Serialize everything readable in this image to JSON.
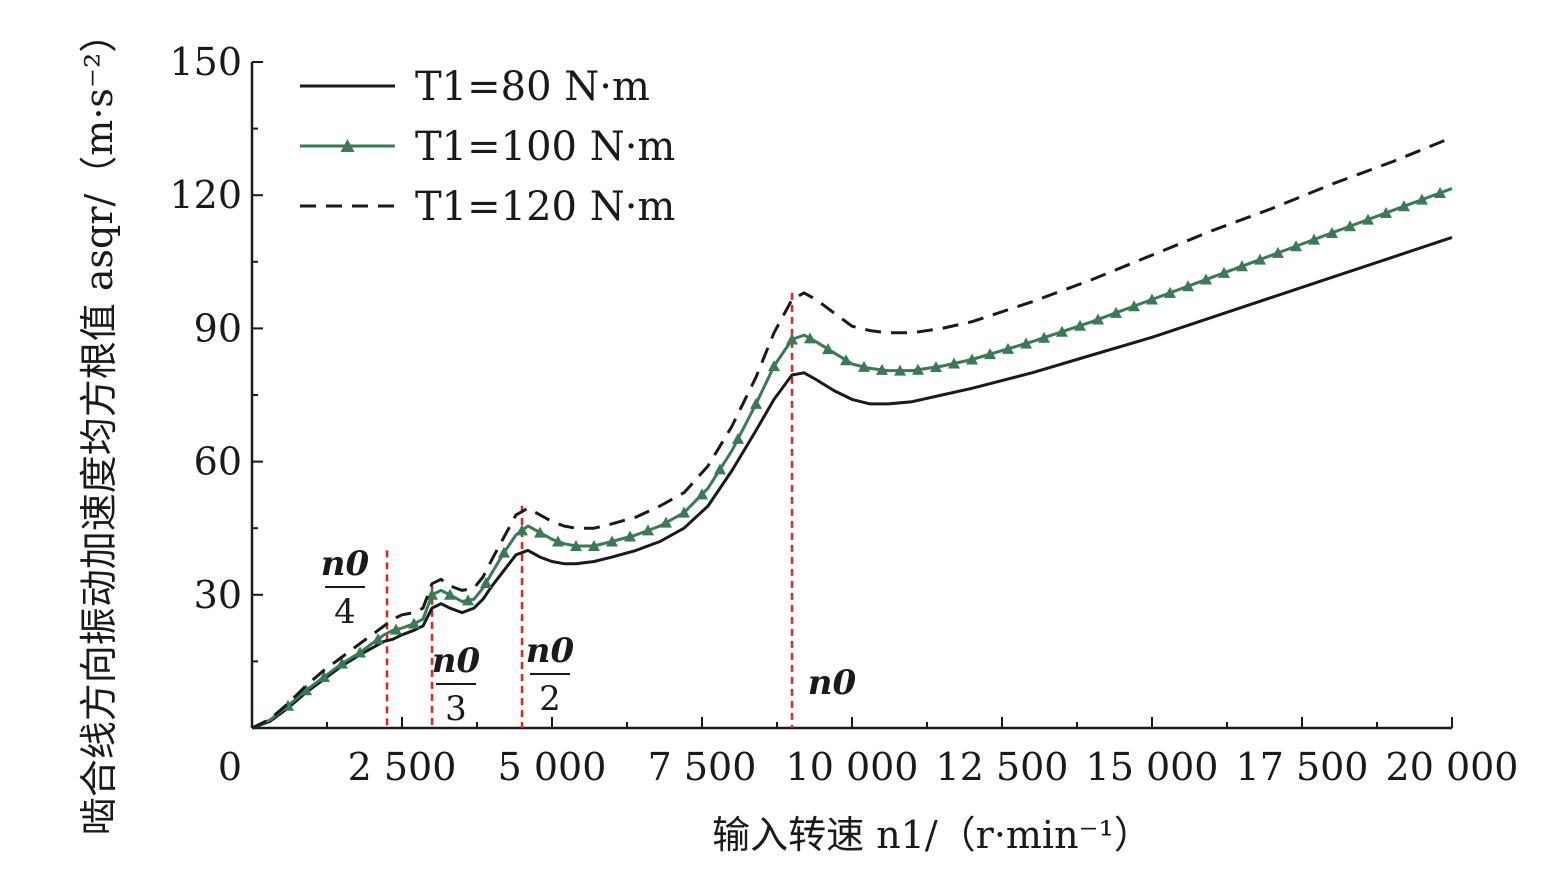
{
  "chart_data": {
    "type": "line",
    "title": "",
    "xlabel": "输入转速 n1/（r·min⁻¹）",
    "ylabel": "啮合线方向振动加速度均方根值 asqr/（m·s⁻²）",
    "xlim": [
      0,
      20000
    ],
    "ylim": [
      0,
      150
    ],
    "x_ticks": [
      0,
      2500,
      5000,
      7500,
      10000,
      12500,
      15000,
      17500,
      20000
    ],
    "x_tick_labels": [
      "0",
      "2 500",
      "5 000",
      "7 500",
      "10 000",
      "12 500",
      "15 000",
      "17 500",
      "20 000"
    ],
    "y_ticks": [
      30,
      60,
      90,
      120,
      150
    ],
    "y_tick_labels": [
      "30",
      "60",
      "90",
      "120",
      "150"
    ],
    "grid": false,
    "legend_position": "top-left",
    "x": [
      0,
      300,
      600,
      900,
      1200,
      1500,
      1800,
      2000,
      2200,
      2350,
      2500,
      2700,
      2850,
      3000,
      3150,
      3300,
      3500,
      3700,
      3850,
      4000,
      4200,
      4400,
      4600,
      4800,
      5000,
      5200,
      5400,
      5700,
      6000,
      6400,
      6800,
      7200,
      7600,
      8000,
      8400,
      8700,
      9000,
      9200,
      9400,
      9700,
      10000,
      10300,
      10600,
      11000,
      11500,
      12000,
      13000,
      14000,
      15000,
      16000,
      17000,
      18000,
      19000,
      20000
    ],
    "series": [
      {
        "name": "T1=80 N·m",
        "style": "solid",
        "color": "#1a1a1a",
        "values": [
          0,
          1.5,
          4.5,
          8,
          11,
          14,
          16.5,
          18,
          19.5,
          20,
          21,
          22,
          23,
          27,
          28,
          27,
          26,
          27,
          29,
          32,
          35.5,
          39,
          40,
          38.5,
          37.5,
          37,
          37,
          37.5,
          38.5,
          40,
          42,
          45,
          50,
          58,
          67,
          74,
          79.5,
          80,
          78.5,
          76,
          74,
          73,
          73,
          73.5,
          75,
          76.5,
          80,
          84,
          88,
          92.5,
          97,
          101.5,
          106,
          110.5
        ]
      },
      {
        "name": "T1=100 N·m",
        "style": "solid-triangle-markers",
        "color": "#3a7a55",
        "values": [
          0,
          1.8,
          5,
          8.5,
          11.5,
          14.5,
          17,
          19,
          21,
          22,
          22.5,
          23.5,
          24.5,
          30,
          31,
          30,
          28.5,
          29,
          31.5,
          35,
          39.5,
          43.5,
          45.5,
          44,
          42.5,
          41.5,
          41,
          41,
          42,
          43.5,
          45.5,
          48.5,
          54,
          62.5,
          73,
          81.5,
          87.5,
          88.5,
          87,
          84.5,
          82,
          81,
          80.5,
          80.5,
          81.5,
          83,
          87,
          91.5,
          96.5,
          101.5,
          106.5,
          111.5,
          116.5,
          121.5
        ]
      },
      {
        "name": "T1=120 N·m",
        "style": "dashed",
        "color": "#1a1a1a",
        "values": [
          0,
          2,
          5.5,
          9.5,
          13,
          16,
          19,
          21,
          23,
          24.5,
          25.5,
          26,
          27,
          32.5,
          33.5,
          32,
          31,
          31.5,
          34,
          38,
          43,
          48,
          49.5,
          48,
          46.5,
          45.5,
          45,
          45,
          46,
          47.5,
          50,
          53,
          59,
          68,
          79,
          89,
          96.5,
          98,
          96.5,
          93.5,
          90.5,
          89.5,
          89,
          89,
          90,
          91.5,
          96,
          101,
          106.5,
          112,
          117,
          122.5,
          127.5,
          133
        ]
      }
    ],
    "vlines": [
      {
        "x": 2250,
        "label_num": "n0",
        "label_den": "4",
        "color": "#e8231e",
        "style": "dashed"
      },
      {
        "x": 3000,
        "label_num": "n0",
        "label_den": "3",
        "color": "#e8231e",
        "style": "dashed"
      },
      {
        "x": 4500,
        "label_num": "n0",
        "label_den": "2",
        "color": "#e8231e",
        "style": "dashed"
      },
      {
        "x": 9000,
        "label_num": "n0",
        "label_den": "",
        "color": "#e8231e",
        "style": "dashed"
      }
    ]
  }
}
